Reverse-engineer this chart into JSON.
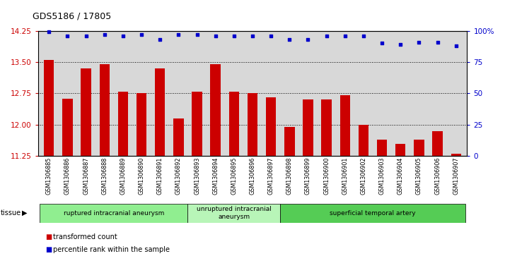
{
  "title": "GDS5186 / 17805",
  "samples": [
    "GSM1306885",
    "GSM1306886",
    "GSM1306887",
    "GSM1306888",
    "GSM1306889",
    "GSM1306890",
    "GSM1306891",
    "GSM1306892",
    "GSM1306893",
    "GSM1306894",
    "GSM1306895",
    "GSM1306896",
    "GSM1306897",
    "GSM1306898",
    "GSM1306899",
    "GSM1306900",
    "GSM1306901",
    "GSM1306902",
    "GSM1306903",
    "GSM1306904",
    "GSM1306905",
    "GSM1306906",
    "GSM1306907"
  ],
  "bar_values": [
    13.55,
    12.62,
    13.35,
    13.45,
    12.8,
    12.75,
    13.35,
    12.15,
    12.8,
    13.45,
    12.8,
    12.75,
    12.65,
    11.95,
    12.6,
    12.6,
    12.7,
    12.0,
    11.65,
    11.55,
    11.65,
    11.85,
    11.3
  ],
  "dot_values": [
    99,
    96,
    96,
    97,
    96,
    97,
    93,
    97,
    97,
    96,
    96,
    96,
    96,
    93,
    93,
    96,
    96,
    96,
    90,
    89,
    91,
    91,
    88
  ],
  "bar_color": "#cc0000",
  "dot_color": "#0000cc",
  "ylim_left": [
    11.25,
    14.25
  ],
  "ylim_right": [
    0,
    100
  ],
  "yticks_left": [
    11.25,
    12.0,
    12.75,
    13.5,
    14.25
  ],
  "yticks_right": [
    0,
    25,
    50,
    75,
    100
  ],
  "ytick_labels_right": [
    "0",
    "25",
    "50",
    "75",
    "100%"
  ],
  "grid_lines": [
    13.5,
    12.75,
    12.0
  ],
  "tissue_groups": [
    {
      "label": "ruptured intracranial aneurysm",
      "start": 0,
      "end": 7,
      "color": "#90ee90"
    },
    {
      "label": "unruptured intracranial\naneurysm",
      "start": 8,
      "end": 12,
      "color": "#b8f5b8"
    },
    {
      "label": "superficial temporal artery",
      "start": 13,
      "end": 22,
      "color": "#55cc55"
    }
  ],
  "legend_items": [
    {
      "label": "transformed count",
      "color": "#cc0000"
    },
    {
      "label": "percentile rank within the sample",
      "color": "#0000cc"
    }
  ],
  "tissue_label": "tissue",
  "plot_bg": "#d8d8d8",
  "fig_bg": "#ffffff"
}
